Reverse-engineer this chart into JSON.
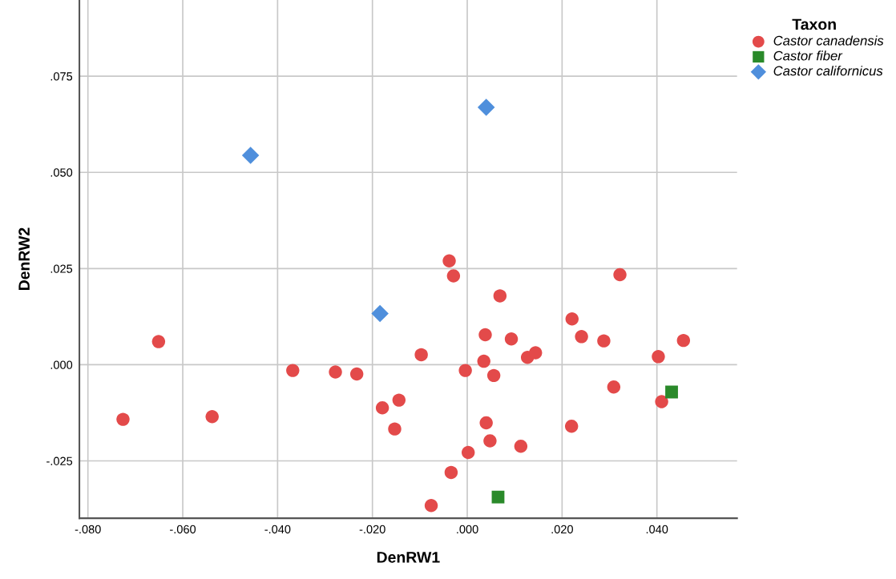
{
  "chart_data": {
    "type": "scatter",
    "xlabel": "DenRW1",
    "ylabel": "DenRW2",
    "legend_title": "Taxon",
    "legend": "top right",
    "grid": true,
    "xlim": [
      -0.0818,
      0.0569
    ],
    "ylim": [
      -0.0399,
      0.0948
    ],
    "xticks": [
      {
        "value": -0.08,
        "label": "-.080"
      },
      {
        "value": -0.06,
        "label": "-.060"
      },
      {
        "value": -0.04,
        "label": "-.040"
      },
      {
        "value": -0.02,
        "label": "-.020"
      },
      {
        "value": 0,
        "label": ".000"
      },
      {
        "value": 0.02,
        "label": ".020"
      },
      {
        "value": 0.04,
        "label": ".040"
      }
    ],
    "yticks": [
      {
        "value": -0.025,
        "label": "-.025"
      },
      {
        "value": 0,
        "label": ".000"
      },
      {
        "value": 0.025,
        "label": ".025"
      },
      {
        "value": 0.05,
        "label": ".050"
      },
      {
        "value": 0.075,
        "label": ".075"
      }
    ],
    "series": [
      {
        "name": "Castor canadensis",
        "color": "#e34a4a",
        "marker": "circle",
        "x": [
          -0.0726,
          -0.0651,
          -0.0538,
          -0.0368,
          -0.0278,
          -0.0233,
          -0.0179,
          -0.0153,
          -0.0144,
          -0.0038,
          -0.0029,
          0.0069,
          -0.0097,
          0.0038,
          0.0093,
          0.0035,
          -0.0004,
          0.0056,
          0.0127,
          0.0144,
          0.0221,
          0.0241,
          0.0288,
          0.0322,
          0.0403,
          0.0456,
          0.0309,
          0.041,
          0.022,
          0.004,
          0.0048,
          0.0113,
          0.0002,
          -0.0034,
          -0.0076
        ],
        "values": [
          -0.0142,
          0.006,
          -0.0135,
          -0.0015,
          -0.0019,
          -0.0024,
          -0.0112,
          -0.0167,
          -0.0092,
          0.027,
          0.0231,
          0.0179,
          0.0026,
          0.0078,
          0.0067,
          0.0009,
          -0.0015,
          -0.0028,
          0.0019,
          0.0031,
          0.0119,
          0.0073,
          0.0062,
          0.0234,
          0.0021,
          0.0063,
          -0.0058,
          -0.0096,
          -0.016,
          -0.0151,
          -0.0198,
          -0.0212,
          -0.0228,
          -0.028,
          -0.0366
        ]
      },
      {
        "name": "Castor fiber",
        "color": "#2a8a2a",
        "marker": "square",
        "x": [
          0.0431,
          0.0065
        ],
        "values": [
          -0.0071,
          -0.0344
        ]
      },
      {
        "name": "Castor californicus",
        "color": "#4f8fdc",
        "marker": "diamond",
        "x": [
          -0.0184,
          -0.0457,
          0.004
        ],
        "values": [
          0.0133,
          0.0544,
          0.0669
        ]
      }
    ]
  }
}
